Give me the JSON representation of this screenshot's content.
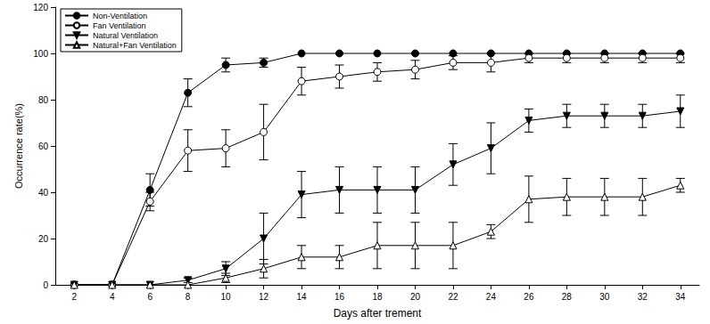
{
  "chart_data": {
    "type": "line",
    "x_label": "Days after trement",
    "y_label": "Occurrence rate(%)",
    "x": [
      2,
      4,
      6,
      8,
      10,
      12,
      14,
      16,
      18,
      20,
      22,
      24,
      26,
      28,
      30,
      32,
      34
    ],
    "xlim": [
      1,
      35
    ],
    "xticks": [
      2,
      4,
      6,
      8,
      10,
      12,
      14,
      16,
      18,
      20,
      22,
      24,
      26,
      28,
      30,
      32,
      34
    ],
    "ylim": [
      0,
      120
    ],
    "yticks": [
      0,
      20,
      40,
      60,
      80,
      100,
      120
    ],
    "grid": false,
    "legend": "upper left",
    "series": [
      {
        "name": "Non-Ventilation",
        "color": "#000000",
        "marker": "circle",
        "line_style": "solid",
        "values": [
          0,
          0,
          41,
          83,
          95,
          96,
          100,
          100,
          100,
          100,
          100,
          100,
          100,
          100,
          100,
          100,
          100
        ],
        "errors": [
          0,
          0,
          7,
          6,
          3,
          2,
          0,
          0,
          0,
          0,
          0,
          0,
          0,
          0,
          0,
          0,
          0
        ]
      },
      {
        "name": "Fan Ventilation",
        "color": "#000000",
        "marker": "circle-open",
        "line_style": "solid",
        "values": [
          0,
          0,
          36,
          58,
          59,
          66,
          88,
          90,
          92,
          93,
          96,
          96,
          98,
          98,
          98,
          98,
          98
        ],
        "errors": [
          0,
          0,
          4,
          9,
          8,
          12,
          6,
          5,
          4,
          4,
          3,
          4,
          2,
          2,
          2,
          2,
          2
        ]
      },
      {
        "name": "Natural Ventilation",
        "color": "#000000",
        "marker": "triangle-down",
        "line_style": "solid",
        "values": [
          0,
          0,
          0,
          2,
          7,
          20,
          39,
          41,
          41,
          41,
          52,
          59,
          71,
          73,
          73,
          73,
          75
        ],
        "errors": [
          0,
          0,
          0,
          1,
          3,
          11,
          10,
          10,
          10,
          10,
          9,
          11,
          5,
          5,
          5,
          5,
          7
        ]
      },
      {
        "name": "Natural+Fan Ventilation",
        "color": "#000000",
        "marker": "triangle-open",
        "line_style": "solid",
        "values": [
          0,
          0,
          0,
          0,
          3,
          7,
          12,
          12,
          17,
          17,
          17,
          23,
          37,
          38,
          38,
          38,
          43
        ],
        "errors": [
          0,
          0,
          0,
          0,
          2,
          4,
          5,
          5,
          10,
          10,
          10,
          3,
          10,
          8,
          8,
          8,
          3
        ]
      }
    ]
  }
}
